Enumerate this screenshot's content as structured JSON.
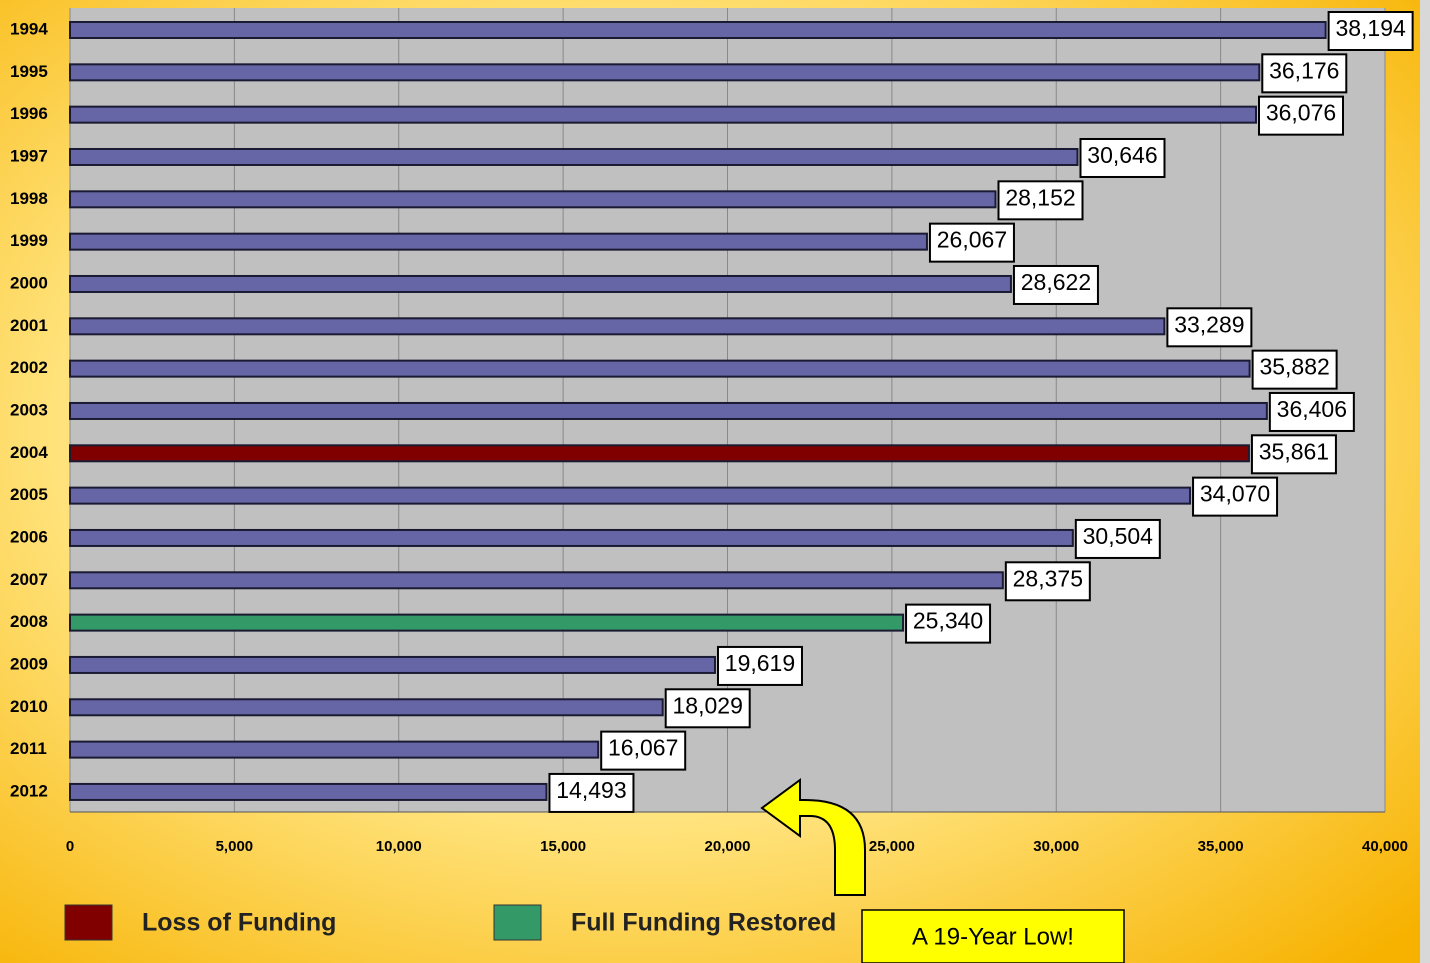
{
  "chart_data": {
    "type": "hbar",
    "categories": [
      "1994",
      "1995",
      "1996",
      "1997",
      "1998",
      "1999",
      "2000",
      "2001",
      "2002",
      "2003",
      "2004",
      "2005",
      "2006",
      "2007",
      "2008",
      "2009",
      "2010",
      "2011",
      "2012"
    ],
    "values": [
      38194,
      36176,
      36076,
      30646,
      28152,
      26067,
      28622,
      33289,
      35882,
      36406,
      35861,
      34070,
      30504,
      28375,
      25340,
      19619,
      18029,
      16067,
      14493
    ],
    "value_labels": [
      "38,194",
      "36,176",
      "36,076",
      "30,646",
      "28,152",
      "26,067",
      "28,622",
      "33,289",
      "35,882",
      "36,406",
      "35,861",
      "34,070",
      "30,504",
      "28,375",
      "25,340",
      "19,619",
      "18,029",
      "16,067",
      "14,493"
    ],
    "color": "#6666a6",
    "bar_colors": [
      null,
      null,
      null,
      null,
      null,
      null,
      null,
      null,
      null,
      null,
      "#800000",
      null,
      null,
      null,
      "#339966",
      null,
      null,
      null,
      null
    ],
    "xlim": [
      0,
      40000
    ],
    "xticks": [
      0,
      {
        "value": 5000,
        "label": "5,000"
      },
      {
        "value": 10000,
        "label": "10,000"
      },
      {
        "value": 15000,
        "label": "15,000"
      },
      {
        "value": 20000,
        "label": "20,000"
      },
      {
        "value": 25000,
        "label": "25,000"
      },
      {
        "value": 30000,
        "label": "30,000"
      },
      {
        "value": 35000,
        "label": "35,000"
      },
      {
        "value": 40000,
        "label": "40,000"
      }
    ],
    "grid": true,
    "legend": [
      {
        "label": "Loss of Funding",
        "color": "#800000"
      },
      {
        "label": "Full Funding Restored",
        "color": "#339966"
      }
    ],
    "annotation": "A 19-Year Low!"
  }
}
